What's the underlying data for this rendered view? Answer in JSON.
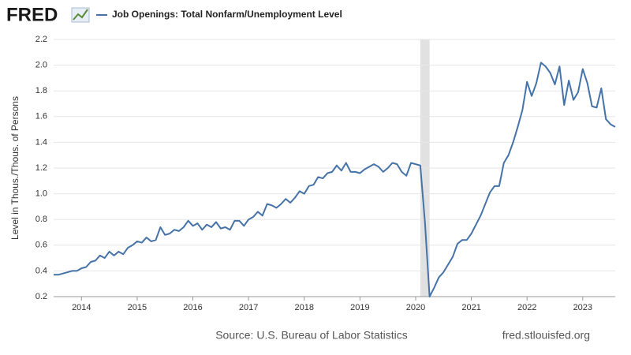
{
  "chart_data": {
    "type": "line",
    "logo": "FRED",
    "ylabel": "Level in Thous./Thous. of Persons",
    "source": "Source: U.S. Bureau of Labor Statistics",
    "site": "fred.stlouisfed.org",
    "x": [
      "2013-07",
      "2013-08",
      "2013-09",
      "2013-10",
      "2013-11",
      "2013-12",
      "2014-01",
      "2014-02",
      "2014-03",
      "2014-04",
      "2014-05",
      "2014-06",
      "2014-07",
      "2014-08",
      "2014-09",
      "2014-10",
      "2014-11",
      "2014-12",
      "2015-01",
      "2015-02",
      "2015-03",
      "2015-04",
      "2015-05",
      "2015-06",
      "2015-07",
      "2015-08",
      "2015-09",
      "2015-10",
      "2015-11",
      "2015-12",
      "2016-01",
      "2016-02",
      "2016-03",
      "2016-04",
      "2016-05",
      "2016-06",
      "2016-07",
      "2016-08",
      "2016-09",
      "2016-10",
      "2016-11",
      "2016-12",
      "2017-01",
      "2017-02",
      "2017-03",
      "2017-04",
      "2017-05",
      "2017-06",
      "2017-07",
      "2017-08",
      "2017-09",
      "2017-10",
      "2017-11",
      "2017-12",
      "2018-01",
      "2018-02",
      "2018-03",
      "2018-04",
      "2018-05",
      "2018-06",
      "2018-07",
      "2018-08",
      "2018-09",
      "2018-10",
      "2018-11",
      "2018-12",
      "2019-01",
      "2019-02",
      "2019-03",
      "2019-04",
      "2019-05",
      "2019-06",
      "2019-07",
      "2019-08",
      "2019-09",
      "2019-10",
      "2019-11",
      "2019-12",
      "2020-01",
      "2020-02",
      "2020-03",
      "2020-04",
      "2020-05",
      "2020-06",
      "2020-07",
      "2020-08",
      "2020-09",
      "2020-10",
      "2020-11",
      "2020-12",
      "2021-01",
      "2021-02",
      "2021-03",
      "2021-04",
      "2021-05",
      "2021-06",
      "2021-07",
      "2021-08",
      "2021-09",
      "2021-10",
      "2021-11",
      "2021-12",
      "2022-01",
      "2022-02",
      "2022-03",
      "2022-04",
      "2022-05",
      "2022-06",
      "2022-07",
      "2022-08",
      "2022-09",
      "2022-10",
      "2022-11",
      "2022-12",
      "2023-01",
      "2023-02",
      "2023-03",
      "2023-04",
      "2023-05",
      "2023-06",
      "2023-07",
      "2023-08"
    ],
    "series": [
      {
        "name": "Job Openings: Total Nonfarm/Unemployment Level",
        "color": "#4572a7",
        "values": [
          0.37,
          0.37,
          0.38,
          0.39,
          0.4,
          0.4,
          0.42,
          0.43,
          0.47,
          0.48,
          0.52,
          0.5,
          0.55,
          0.52,
          0.55,
          0.53,
          0.58,
          0.6,
          0.63,
          0.62,
          0.66,
          0.63,
          0.64,
          0.74,
          0.68,
          0.69,
          0.72,
          0.71,
          0.74,
          0.79,
          0.75,
          0.77,
          0.72,
          0.76,
          0.74,
          0.78,
          0.73,
          0.74,
          0.72,
          0.79,
          0.79,
          0.75,
          0.8,
          0.82,
          0.86,
          0.83,
          0.92,
          0.91,
          0.89,
          0.92,
          0.96,
          0.93,
          0.97,
          1.02,
          1.0,
          1.06,
          1.07,
          1.13,
          1.12,
          1.16,
          1.17,
          1.22,
          1.18,
          1.24,
          1.17,
          1.17,
          1.16,
          1.19,
          1.21,
          1.23,
          1.21,
          1.17,
          1.2,
          1.24,
          1.23,
          1.17,
          1.14,
          1.24,
          1.23,
          1.22,
          0.78,
          0.2,
          0.27,
          0.35,
          0.39,
          0.45,
          0.51,
          0.61,
          0.64,
          0.64,
          0.69,
          0.76,
          0.83,
          0.92,
          1.01,
          1.06,
          1.06,
          1.24,
          1.3,
          1.4,
          1.52,
          1.65,
          1.87,
          1.76,
          1.86,
          2.02,
          1.99,
          1.94,
          1.85,
          1.99,
          1.69,
          1.88,
          1.73,
          1.79,
          1.97,
          1.86,
          1.68,
          1.67,
          1.82,
          1.58,
          1.54,
          1.52
        ]
      }
    ],
    "recession": [
      "2020-02",
      "2020-04"
    ],
    "xlim": [
      "2013-07",
      "2023-08"
    ],
    "xticks": [
      {
        "value": "2014-01",
        "label": "2014"
      },
      {
        "value": "2015-01",
        "label": "2015"
      },
      {
        "value": "2016-01",
        "label": "2016"
      },
      {
        "value": "2017-01",
        "label": "2017"
      },
      {
        "value": "2018-01",
        "label": "2018"
      },
      {
        "value": "2019-01",
        "label": "2019"
      },
      {
        "value": "2020-01",
        "label": "2020"
      },
      {
        "value": "2021-01",
        "label": "2021"
      },
      {
        "value": "2022-01",
        "label": "2022"
      },
      {
        "value": "2023-01",
        "label": "2023"
      }
    ],
    "ylim": [
      0.2,
      2.2
    ],
    "yticks": [
      0.2,
      0.4,
      0.6,
      0.8,
      {
        "value": 1.0,
        "label": "1.0"
      },
      1.2,
      1.4,
      1.6,
      1.8,
      {
        "value": 2.0,
        "label": "2.0"
      },
      2.2
    ],
    "grid": true
  }
}
